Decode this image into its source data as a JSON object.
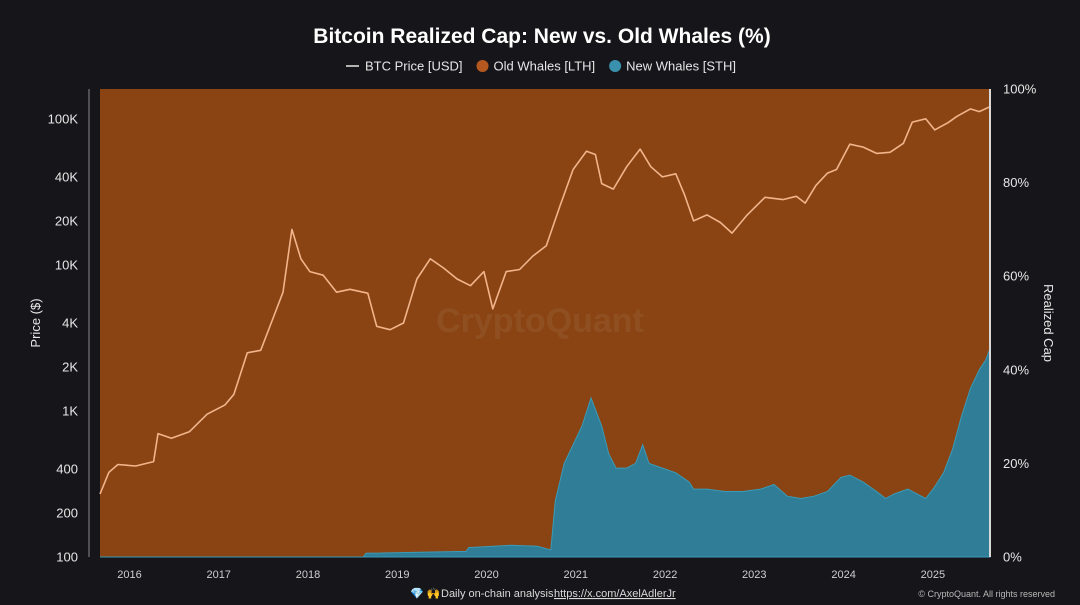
{
  "chart_data": {
    "type": "area",
    "title": "Bitcoin Realized Cap: New vs. Old Whales (%)",
    "legend": [
      {
        "label": "BTC Price [USD]",
        "color": "#f2b48a",
        "marker": "line"
      },
      {
        "label": "Old Whales [LTH]",
        "color": "#8a4413",
        "marker": "dot"
      },
      {
        "label": "New Whales [STH]",
        "color": "#2f7d97",
        "marker": "dot"
      }
    ],
    "legend_position": "top-center",
    "ylabel_left": "Price ($)",
    "ylabel_right": "Realized Cap",
    "y_left_scale": "log",
    "y_left_ticks": [
      {
        "v": 100,
        "label": "100"
      },
      {
        "v": 200,
        "label": "200"
      },
      {
        "v": 400,
        "label": "400"
      },
      {
        "v": 1000,
        "label": "1K"
      },
      {
        "v": 2000,
        "label": "2K"
      },
      {
        "v": 4000,
        "label": "4K"
      },
      {
        "v": 10000,
        "label": "10K"
      },
      {
        "v": 20000,
        "label": "20K"
      },
      {
        "v": 40000,
        "label": "40K"
      },
      {
        "v": 100000,
        "label": "100K"
      }
    ],
    "y_left_range": [
      100,
      160000
    ],
    "y_right_ticks": [
      {
        "v": 0,
        "label": "0%"
      },
      {
        "v": 20,
        "label": "20%"
      },
      {
        "v": 40,
        "label": "40%"
      },
      {
        "v": 60,
        "label": "60%"
      },
      {
        "v": 80,
        "label": "80%"
      },
      {
        "v": 100,
        "label": "100%"
      }
    ],
    "y_right_range": [
      0,
      100
    ],
    "x_ticks": [
      "2016",
      "2017",
      "2018",
      "2019",
      "2020",
      "2021",
      "2022",
      "2023",
      "2024",
      "2025"
    ],
    "x_range": [
      2015.8,
      2025.77
    ],
    "grid": false,
    "series": [
      {
        "name": "BTC Price [USD]",
        "axis": "left",
        "points": [
          [
            2015.8,
            270
          ],
          [
            2015.9,
            380
          ],
          [
            2016.0,
            430
          ],
          [
            2016.2,
            420
          ],
          [
            2016.4,
            450
          ],
          [
            2016.45,
            700
          ],
          [
            2016.6,
            650
          ],
          [
            2016.8,
            720
          ],
          [
            2017.0,
            950
          ],
          [
            2017.2,
            1100
          ],
          [
            2017.3,
            1300
          ],
          [
            2017.45,
            2500
          ],
          [
            2017.6,
            2600
          ],
          [
            2017.75,
            4500
          ],
          [
            2017.85,
            6500
          ],
          [
            2017.95,
            17500
          ],
          [
            2018.05,
            11000
          ],
          [
            2018.15,
            9000
          ],
          [
            2018.3,
            8500
          ],
          [
            2018.45,
            6500
          ],
          [
            2018.6,
            6800
          ],
          [
            2018.8,
            6400
          ],
          [
            2018.9,
            3800
          ],
          [
            2019.05,
            3600
          ],
          [
            2019.2,
            4000
          ],
          [
            2019.35,
            8000
          ],
          [
            2019.5,
            11000
          ],
          [
            2019.65,
            9500
          ],
          [
            2019.8,
            8000
          ],
          [
            2019.95,
            7200
          ],
          [
            2020.1,
            9000
          ],
          [
            2020.2,
            5000
          ],
          [
            2020.35,
            9000
          ],
          [
            2020.5,
            9300
          ],
          [
            2020.65,
            11500
          ],
          [
            2020.8,
            13500
          ],
          [
            2020.95,
            25000
          ],
          [
            2021.1,
            45000
          ],
          [
            2021.25,
            60000
          ],
          [
            2021.35,
            57000
          ],
          [
            2021.42,
            36000
          ],
          [
            2021.55,
            33000
          ],
          [
            2021.7,
            47000
          ],
          [
            2021.85,
            62000
          ],
          [
            2021.97,
            47000
          ],
          [
            2022.1,
            40000
          ],
          [
            2022.25,
            42000
          ],
          [
            2022.35,
            30000
          ],
          [
            2022.45,
            20000
          ],
          [
            2022.6,
            22000
          ],
          [
            2022.75,
            19500
          ],
          [
            2022.88,
            16500
          ],
          [
            2023.05,
            22000
          ],
          [
            2023.25,
            29000
          ],
          [
            2023.45,
            28000
          ],
          [
            2023.6,
            29500
          ],
          [
            2023.7,
            26500
          ],
          [
            2023.82,
            35000
          ],
          [
            2023.95,
            42500
          ],
          [
            2024.05,
            45000
          ],
          [
            2024.2,
            67000
          ],
          [
            2024.35,
            64000
          ],
          [
            2024.5,
            58000
          ],
          [
            2024.65,
            59000
          ],
          [
            2024.8,
            68000
          ],
          [
            2024.9,
            95000
          ],
          [
            2025.05,
            100000
          ],
          [
            2025.15,
            84000
          ],
          [
            2025.3,
            94000
          ],
          [
            2025.4,
            104000
          ],
          [
            2025.55,
            117000
          ],
          [
            2025.65,
            112000
          ],
          [
            2025.77,
            121000
          ]
        ]
      },
      {
        "name": "New Whales [STH]",
        "axis": "right",
        "points": [
          [
            2015.8,
            0
          ],
          [
            2018.75,
            0
          ],
          [
            2018.78,
            0.8
          ],
          [
            2019.9,
            1.2
          ],
          [
            2019.93,
            2.0
          ],
          [
            2020.4,
            2.5
          ],
          [
            2020.7,
            2.3
          ],
          [
            2020.85,
            1.5
          ],
          [
            2020.9,
            12
          ],
          [
            2021.0,
            20
          ],
          [
            2021.1,
            24
          ],
          [
            2021.2,
            28
          ],
          [
            2021.3,
            34
          ],
          [
            2021.42,
            28
          ],
          [
            2021.5,
            22
          ],
          [
            2021.58,
            19
          ],
          [
            2021.7,
            19
          ],
          [
            2021.8,
            20
          ],
          [
            2021.88,
            24
          ],
          [
            2021.95,
            20
          ],
          [
            2022.1,
            19
          ],
          [
            2022.25,
            18
          ],
          [
            2022.4,
            16
          ],
          [
            2022.45,
            14.5
          ],
          [
            2022.6,
            14.5
          ],
          [
            2022.8,
            14
          ],
          [
            2023.0,
            14
          ],
          [
            2023.2,
            14.5
          ],
          [
            2023.35,
            15.5
          ],
          [
            2023.5,
            13
          ],
          [
            2023.65,
            12.5
          ],
          [
            2023.8,
            13
          ],
          [
            2023.95,
            14
          ],
          [
            2024.1,
            17
          ],
          [
            2024.2,
            17.5
          ],
          [
            2024.35,
            16
          ],
          [
            2024.5,
            14
          ],
          [
            2024.6,
            12.5
          ],
          [
            2024.7,
            13.5
          ],
          [
            2024.85,
            14.5
          ],
          [
            2024.95,
            13.5
          ],
          [
            2025.05,
            12.5
          ],
          [
            2025.15,
            15
          ],
          [
            2025.25,
            18
          ],
          [
            2025.35,
            23
          ],
          [
            2025.45,
            30
          ],
          [
            2025.55,
            36
          ],
          [
            2025.65,
            40
          ],
          [
            2025.72,
            42
          ],
          [
            2025.77,
            44.5
          ]
        ]
      },
      {
        "name": "Old Whales [LTH]",
        "axis": "right",
        "note_value": "100 minus New Whales [STH]"
      }
    ],
    "watermark": "CryptoQuant"
  },
  "footer": {
    "icons": "💎 🙌",
    "prefix": "Daily on-chain analysis: ",
    "link": "https://x.com/AxelAdlerJr",
    "copyright": "© CryptoQuant. All rights reserved"
  }
}
